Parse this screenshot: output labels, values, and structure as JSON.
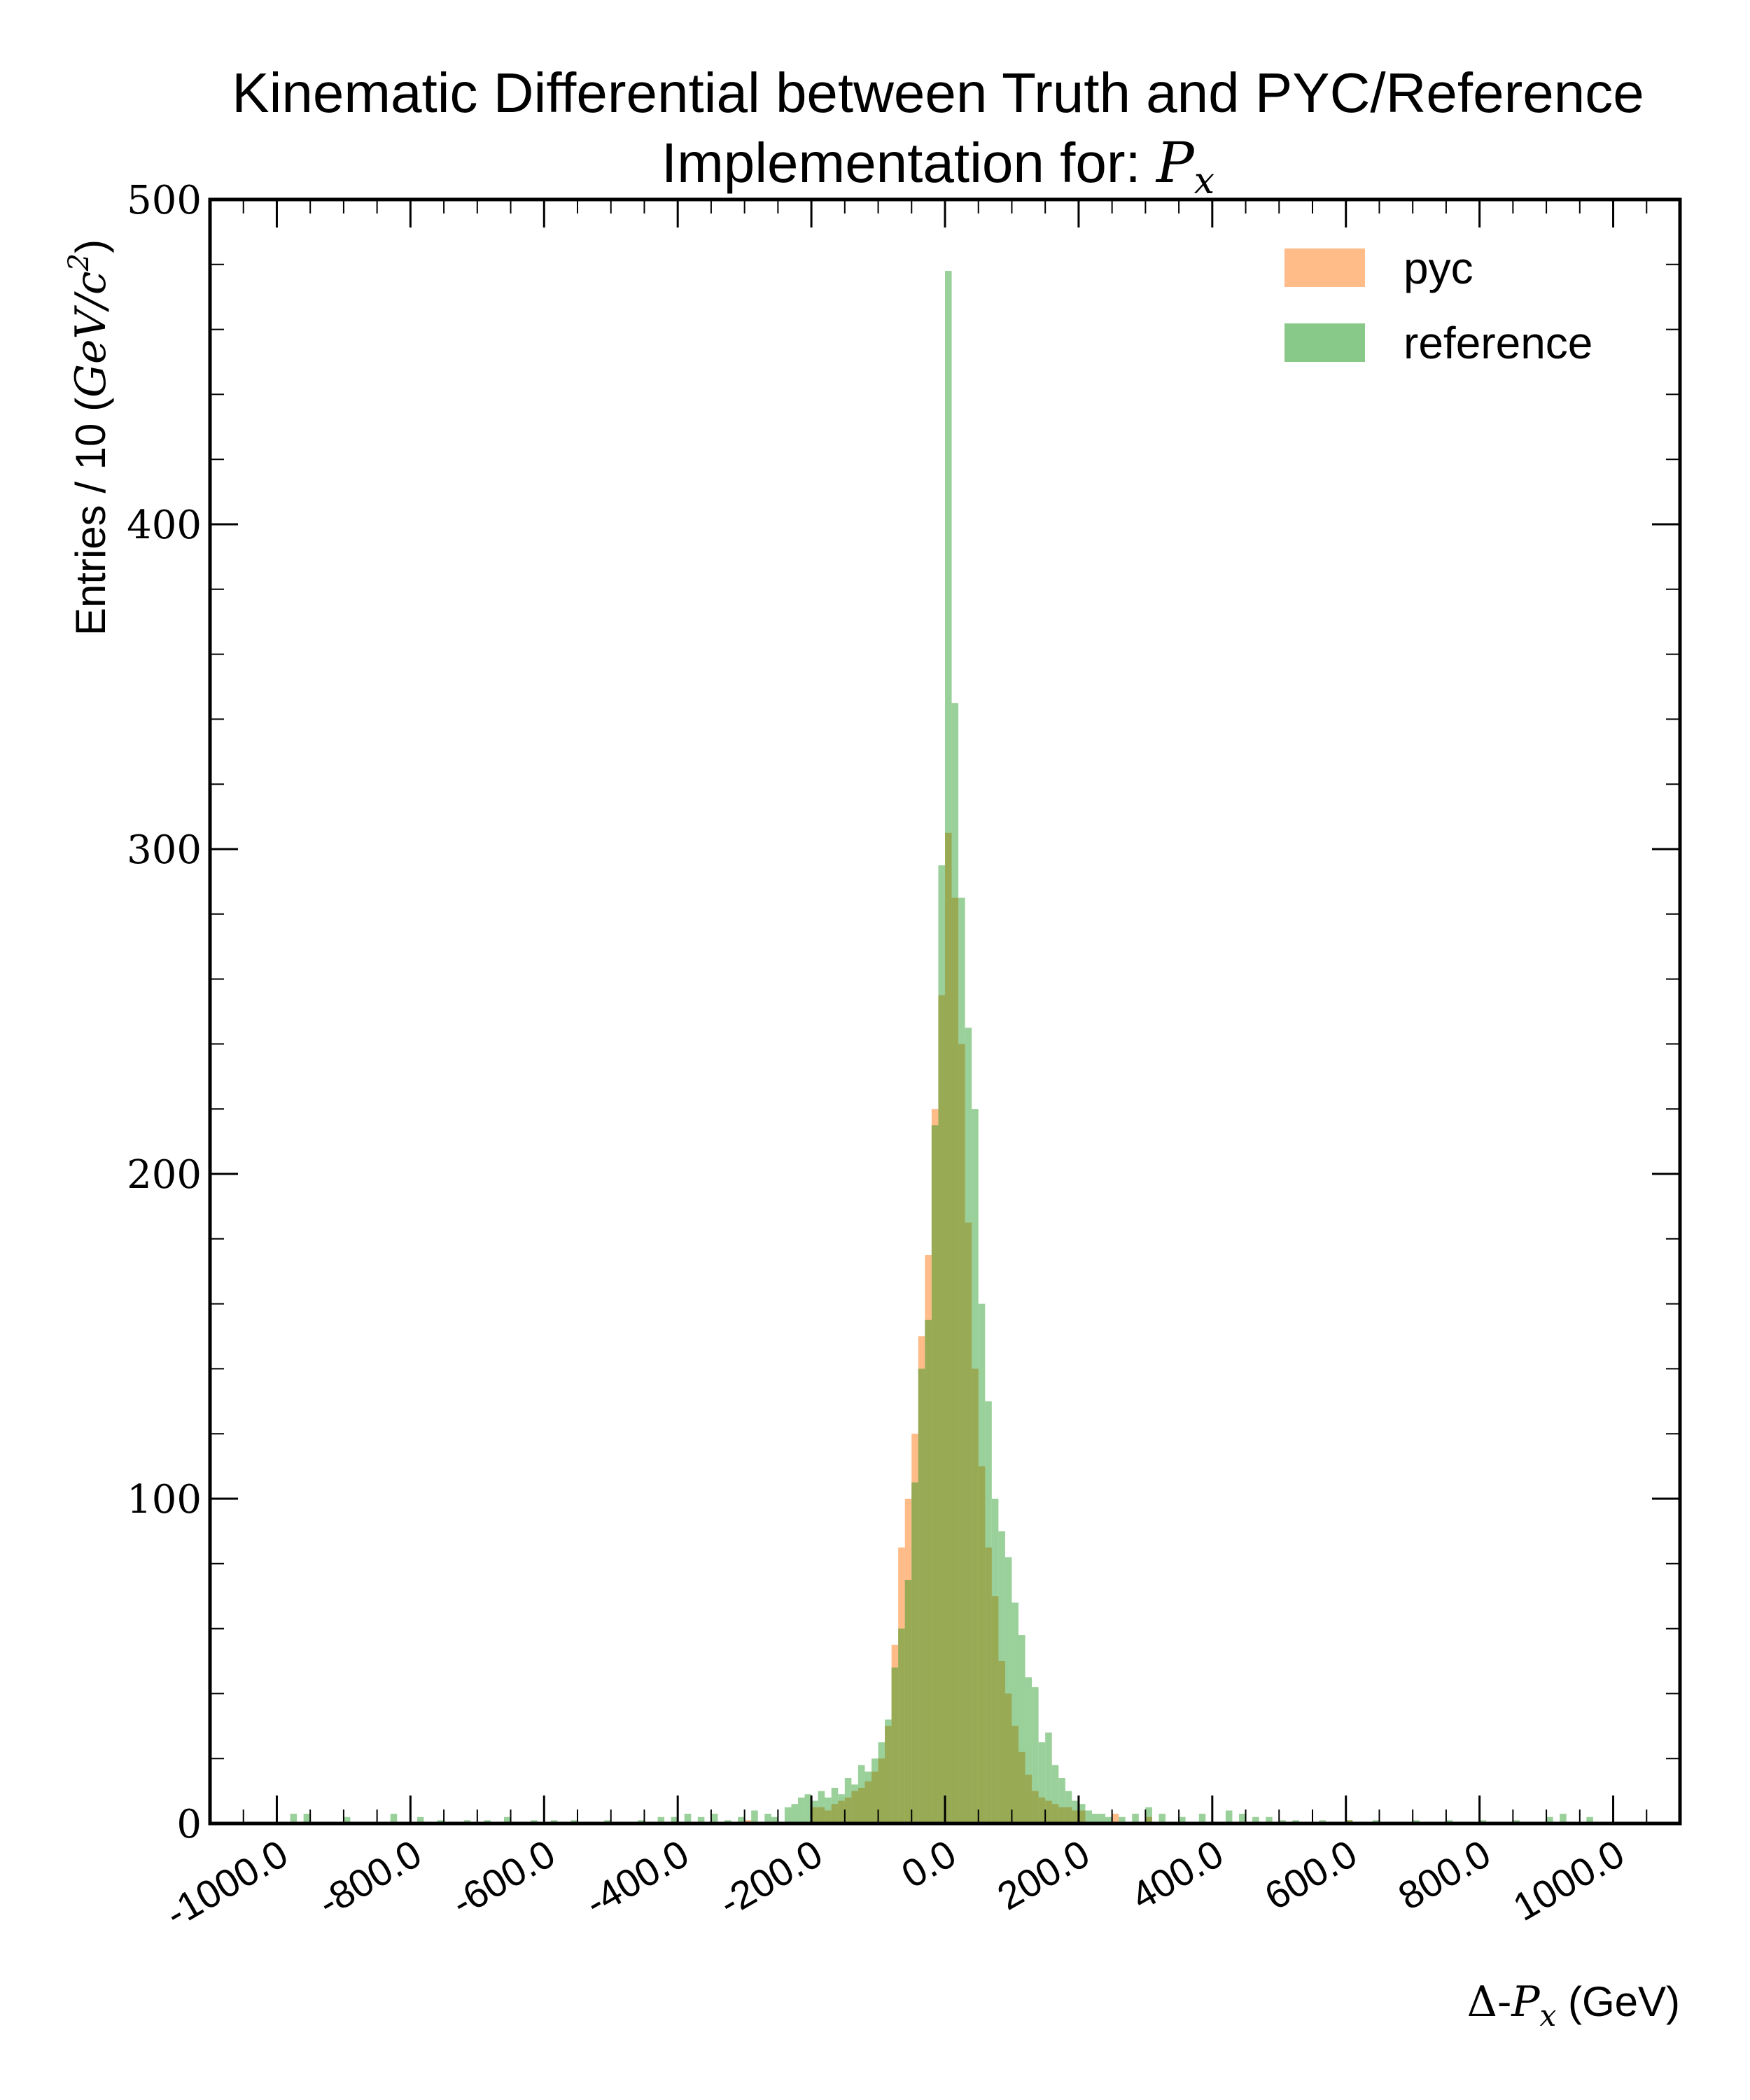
{
  "chart_data": {
    "type": "bar",
    "title_line1": "Kinematic Differential between Truth and PYC/Reference",
    "title_line2_text": "Implementation for: ",
    "title_line2_math": "P",
    "title_line2_sub": "x",
    "ylabel_text": "Entries / 10 (",
    "ylabel_math": "GeV/c",
    "ylabel_sup": "2",
    "ylabel_close": ")",
    "xlabel_prefix": "Δ-",
    "xlabel_math": "P",
    "xlabel_sub": "x",
    "xlabel_suffix": " (GeV)",
    "xlim": [
      -1100,
      1100
    ],
    "ylim": [
      0,
      500
    ],
    "x_ticks": [
      -1000,
      -800,
      -600,
      -400,
      -200,
      0,
      200,
      400,
      600,
      800,
      1000
    ],
    "x_tick_labels": [
      "-1000.0",
      "-800.0",
      "-600.0",
      "-400.0",
      "-200.0",
      "0.0",
      "200.0",
      "400.0",
      "600.0",
      "800.0",
      "1000.0"
    ],
    "y_ticks": [
      0,
      100,
      200,
      300,
      400,
      500
    ],
    "y_tick_labels": [
      "0",
      "100",
      "200",
      "300",
      "400",
      "500"
    ],
    "bin_width": 10,
    "legend_position": "top-right",
    "series": [
      {
        "name": "pyc",
        "color": "#ffbb88",
        "bins": [
          [
            -300,
            1
          ],
          [
            -200,
            5
          ],
          [
            -190,
            5
          ],
          [
            -180,
            4
          ],
          [
            -170,
            6
          ],
          [
            -160,
            7
          ],
          [
            -150,
            8
          ],
          [
            -140,
            10
          ],
          [
            -130,
            11
          ],
          [
            -120,
            13
          ],
          [
            -110,
            16
          ],
          [
            -100,
            20
          ],
          [
            -90,
            30
          ],
          [
            -80,
            55
          ],
          [
            -70,
            85
          ],
          [
            -60,
            100
          ],
          [
            -50,
            120
          ],
          [
            -40,
            150
          ],
          [
            -30,
            175
          ],
          [
            -20,
            220
          ],
          [
            -10,
            255
          ],
          [
            0,
            305
          ],
          [
            10,
            285
          ],
          [
            20,
            240
          ],
          [
            30,
            185
          ],
          [
            40,
            140
          ],
          [
            50,
            110
          ],
          [
            60,
            85
          ],
          [
            70,
            70
          ],
          [
            80,
            50
          ],
          [
            90,
            40
          ],
          [
            100,
            30
          ],
          [
            110,
            22
          ],
          [
            120,
            15
          ],
          [
            130,
            10
          ],
          [
            140,
            8
          ],
          [
            150,
            7
          ],
          [
            160,
            6
          ],
          [
            170,
            5
          ],
          [
            180,
            5
          ],
          [
            190,
            4
          ],
          [
            200,
            4
          ],
          [
            250,
            3
          ],
          [
            300,
            2
          ],
          [
            600,
            1
          ]
        ]
      },
      {
        "name": "reference",
        "color": "#88c888",
        "bins": [
          [
            -980,
            3
          ],
          [
            -960,
            3
          ],
          [
            -900,
            2
          ],
          [
            -830,
            3
          ],
          [
            -790,
            2
          ],
          [
            -760,
            1
          ],
          [
            -720,
            1
          ],
          [
            -690,
            1
          ],
          [
            -660,
            2
          ],
          [
            -620,
            1
          ],
          [
            -590,
            1
          ],
          [
            -560,
            1
          ],
          [
            -510,
            1
          ],
          [
            -460,
            1
          ],
          [
            -430,
            2
          ],
          [
            -410,
            2
          ],
          [
            -390,
            3
          ],
          [
            -370,
            2
          ],
          [
            -350,
            3
          ],
          [
            -330,
            1
          ],
          [
            -310,
            2
          ],
          [
            -290,
            4
          ],
          [
            -270,
            3
          ],
          [
            -260,
            2
          ],
          [
            -240,
            5
          ],
          [
            -230,
            6
          ],
          [
            -220,
            8
          ],
          [
            -210,
            9
          ],
          [
            -200,
            7
          ],
          [
            -190,
            10
          ],
          [
            -180,
            8
          ],
          [
            -170,
            11
          ],
          [
            -160,
            9
          ],
          [
            -150,
            14
          ],
          [
            -140,
            12
          ],
          [
            -130,
            18
          ],
          [
            -120,
            16
          ],
          [
            -110,
            20
          ],
          [
            -100,
            25
          ],
          [
            -90,
            32
          ],
          [
            -80,
            48
          ],
          [
            -70,
            60
          ],
          [
            -60,
            75
          ],
          [
            -50,
            105
          ],
          [
            -40,
            140
          ],
          [
            -30,
            155
          ],
          [
            -20,
            215
          ],
          [
            -10,
            295
          ],
          [
            0,
            478
          ],
          [
            10,
            345
          ],
          [
            20,
            285
          ],
          [
            30,
            245
          ],
          [
            40,
            220
          ],
          [
            50,
            160
          ],
          [
            60,
            130
          ],
          [
            70,
            100
          ],
          [
            80,
            90
          ],
          [
            90,
            82
          ],
          [
            100,
            68
          ],
          [
            110,
            58
          ],
          [
            120,
            45
          ],
          [
            130,
            42
          ],
          [
            140,
            25
          ],
          [
            150,
            28
          ],
          [
            160,
            18
          ],
          [
            170,
            14
          ],
          [
            180,
            10
          ],
          [
            190,
            7
          ],
          [
            200,
            6
          ],
          [
            210,
            4
          ],
          [
            220,
            3
          ],
          [
            230,
            3
          ],
          [
            240,
            2
          ],
          [
            260,
            2
          ],
          [
            280,
            3
          ],
          [
            300,
            5
          ],
          [
            320,
            3
          ],
          [
            350,
            2
          ],
          [
            380,
            3
          ],
          [
            420,
            4
          ],
          [
            440,
            3
          ],
          [
            460,
            2
          ],
          [
            480,
            2
          ],
          [
            500,
            1
          ],
          [
            520,
            1
          ],
          [
            560,
            1
          ],
          [
            600,
            1
          ],
          [
            640,
            1
          ],
          [
            700,
            1
          ],
          [
            750,
            1
          ],
          [
            800,
            1
          ],
          [
            850,
            1
          ],
          [
            900,
            2
          ],
          [
            920,
            3
          ],
          [
            960,
            2
          ]
        ]
      }
    ],
    "overlap_color": "#99aa55"
  }
}
